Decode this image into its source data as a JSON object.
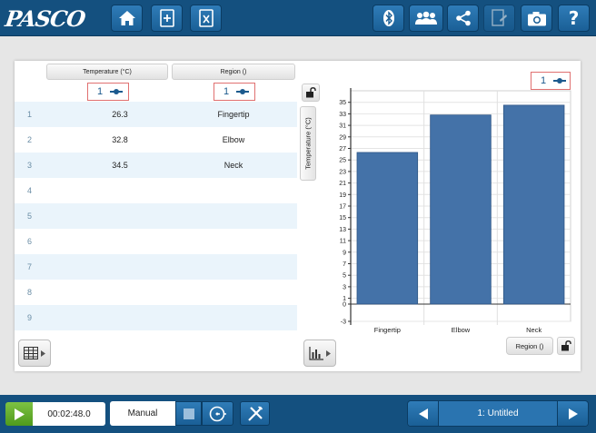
{
  "app": {
    "logo_text": "PASCO"
  },
  "toolbar": {
    "left_icons": [
      "home-icon",
      "new-file-icon",
      "close-file-icon"
    ],
    "right_icons": [
      "bluetooth-icon",
      "sharing-icon",
      "share-icon",
      "journal-icon",
      "camera-icon",
      "help-icon"
    ],
    "help_label": "?"
  },
  "table": {
    "columns": [
      {
        "header": "Temperature (°C)",
        "run": "1"
      },
      {
        "header": "Region ()",
        "run": "1"
      }
    ],
    "rows": [
      {
        "index": "1",
        "temperature": "26.3",
        "region": "Fingertip"
      },
      {
        "index": "2",
        "temperature": "32.8",
        "region": "Elbow"
      },
      {
        "index": "3",
        "temperature": "34.5",
        "region": "Neck"
      },
      {
        "index": "4",
        "temperature": "",
        "region": ""
      },
      {
        "index": "5",
        "temperature": "",
        "region": ""
      },
      {
        "index": "6",
        "temperature": "",
        "region": ""
      },
      {
        "index": "7",
        "temperature": "",
        "region": ""
      },
      {
        "index": "8",
        "temperature": "",
        "region": ""
      },
      {
        "index": "9",
        "temperature": "",
        "region": ""
      }
    ]
  },
  "graph": {
    "run_label": "1",
    "y_axis_label": "Temperature (°C)",
    "x_axis_label": "Region ()"
  },
  "chart_data": {
    "type": "bar",
    "categories": [
      "Fingertip",
      "Elbow",
      "Neck"
    ],
    "values": [
      26.3,
      32.8,
      34.5
    ],
    "xlabel": "Region ()",
    "ylabel": "Temperature (°C)",
    "ylim": [
      -3,
      37
    ],
    "yticks": [
      -3,
      0,
      1,
      3,
      5,
      7,
      9,
      11,
      13,
      15,
      17,
      19,
      21,
      23,
      25,
      27,
      29,
      31,
      33,
      35
    ],
    "bar_color": "#4472a8",
    "grid": true
  },
  "bottom": {
    "elapsed_time": "00:02:48.0",
    "mode": "Manual",
    "page_title": "1: Untitled"
  },
  "colors": {
    "toolbar_blue": "#14507f",
    "accent_red": "#e07070",
    "play_green": "#5fa82b",
    "bar_blue": "#4472a8"
  }
}
